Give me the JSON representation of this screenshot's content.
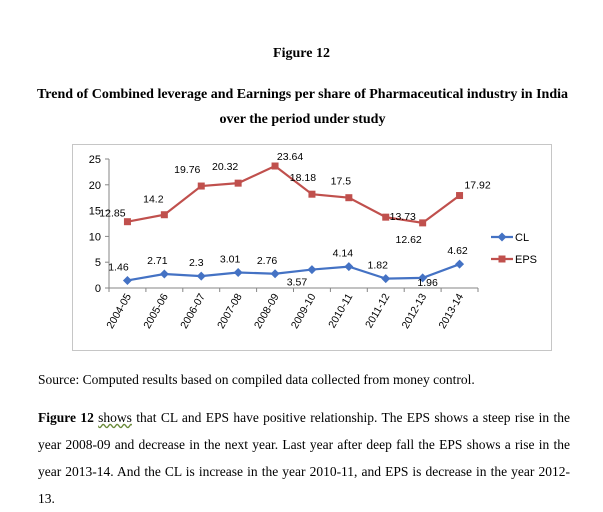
{
  "figure": {
    "title": "Figure 12",
    "caption": "Trend of Combined leverage and Earnings per share of Pharmaceutical industry in India over the period under study"
  },
  "source": "Source: Computed results based on compiled data collected from money control.",
  "paragraph": {
    "bold_lead": "Figure 12",
    "underlined_word": "shows",
    "rest": " that CL and EPS have positive relationship. The EPS shows a steep rise in the year 2008-09 and decrease in the next year. Last year after deep fall the EPS shows a rise in the year 2013-14. And the CL is increase in the year 2010-11, and EPS is decrease in the year 2012-13."
  },
  "chart_data": {
    "type": "line",
    "categories": [
      "2004-05",
      "2005-06",
      "2006-07",
      "2007-08",
      "2008-09",
      "2009-10",
      "2010-11",
      "2011-12",
      "2012-13",
      "2013-14"
    ],
    "ylim": [
      0,
      25
    ],
    "yticks": [
      0,
      5,
      10,
      15,
      20,
      25
    ],
    "grid": false,
    "legend_position": "right",
    "series": [
      {
        "name": "CL",
        "color": "#4472c4",
        "marker": "diamond",
        "values": [
          1.46,
          2.71,
          2.3,
          3.01,
          2.76,
          3.57,
          4.14,
          1.82,
          1.96,
          4.62
        ],
        "labels": [
          "1.46",
          "2.71",
          "2.3",
          "3.01",
          "2.76",
          "3.57",
          "4.14",
          "1.82",
          "1.96",
          "4.62"
        ]
      },
      {
        "name": "EPS",
        "color": "#c0504d",
        "marker": "square",
        "values": [
          12.85,
          14.2,
          19.76,
          20.32,
          23.64,
          18.18,
          17.5,
          13.73,
          12.62,
          17.92
        ],
        "labels": [
          "12.85",
          "14.2",
          "19.76",
          "20.32",
          "23.64",
          "18.18",
          "17.5",
          "13.73",
          "12.62",
          "17.92"
        ]
      }
    ]
  }
}
